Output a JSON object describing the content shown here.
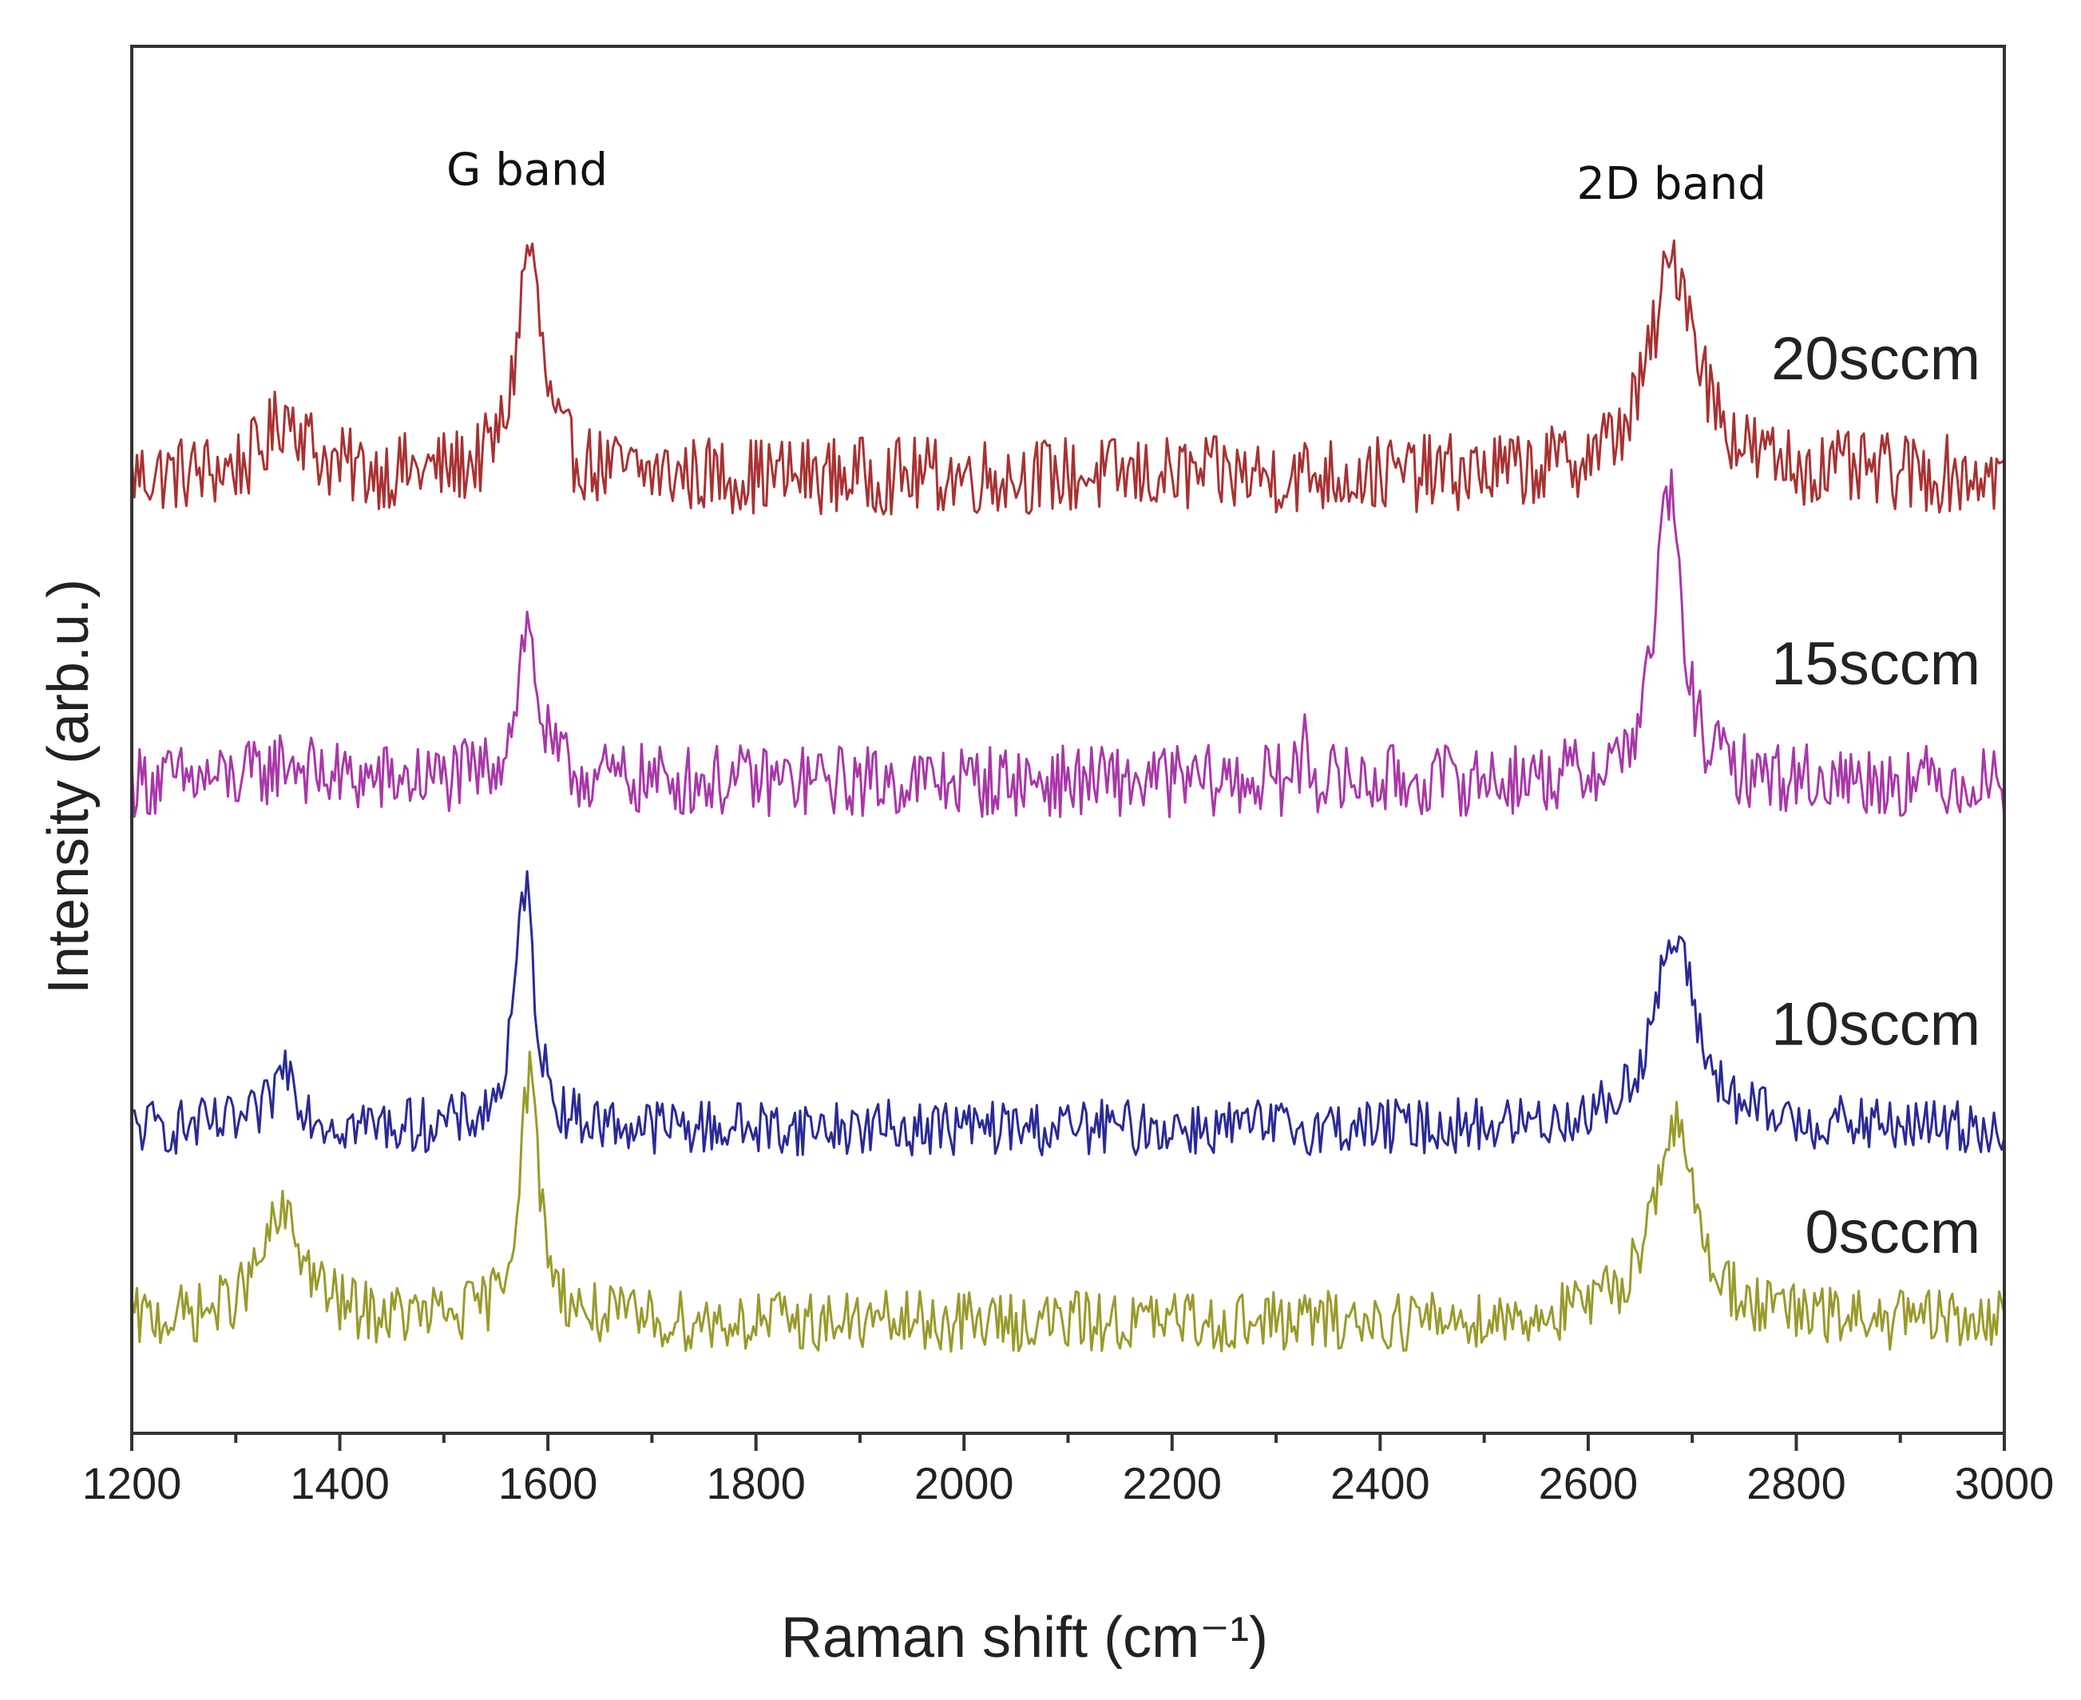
{
  "chart_data": {
    "type": "line",
    "title": "",
    "xlabel": "Raman shift (cm⁻¹)",
    "ylabel": "Intensity (arb.u.)",
    "xlim": [
      1200,
      3000
    ],
    "ylim": [
      0,
      10
    ],
    "xticks": [
      "1200",
      "1400",
      "1600",
      "1800",
      "2000",
      "2200",
      "2400",
      "2600",
      "2800",
      "3000"
    ],
    "xtick_values": [
      1200,
      1400,
      1600,
      1800,
      2000,
      2200,
      2400,
      2600,
      2800,
      3000
    ],
    "y_ticks_labeled": false,
    "annotations": [
      {
        "text": "G band",
        "x": 1580,
        "y": 9.0
      },
      {
        "text": "2D band",
        "x": 2680,
        "y": 8.9
      }
    ],
    "series": [
      {
        "name": "20sccm",
        "color": "#a83232",
        "baseline": 6.9,
        "noise": 0.28,
        "peaks": [
          {
            "center": 1350,
            "height": 0.45,
            "width": 22
          },
          {
            "center": 1582,
            "height": 1.65,
            "width": 14
          },
          {
            "center": 2683,
            "height": 1.55,
            "width": 28
          }
        ],
        "label_y": 7.6
      },
      {
        "name": "15sccm",
        "color": "#a838a8",
        "baseline": 4.7,
        "noise": 0.26,
        "peaks": [
          {
            "center": 1350,
            "height": 0.15,
            "width": 20
          },
          {
            "center": 1580,
            "height": 1.1,
            "width": 12
          },
          {
            "center": 2328,
            "height": 0.45,
            "width": 3
          },
          {
            "center": 2677,
            "height": 2.1,
            "width": 15
          }
        ],
        "label_y": 5.4
      },
      {
        "name": "10sccm",
        "color": "#2a2a96",
        "baseline": 2.2,
        "noise": 0.2,
        "peaks": [
          {
            "center": 1348,
            "height": 0.45,
            "width": 14
          },
          {
            "center": 1578,
            "height": 1.75,
            "width": 11
          },
          {
            "center": 2683,
            "height": 1.35,
            "width": 25
          }
        ],
        "label_y": 2.8
      },
      {
        "name": "0sccm",
        "color": "#9a9a2c",
        "baseline": 0.8,
        "noise": 0.22,
        "peaks": [
          {
            "center": 1345,
            "height": 0.75,
            "width": 26
          },
          {
            "center": 1582,
            "height": 1.75,
            "width": 12
          },
          {
            "center": 2682,
            "height": 1.4,
            "width": 26
          }
        ],
        "label_y": 1.3
      }
    ]
  }
}
